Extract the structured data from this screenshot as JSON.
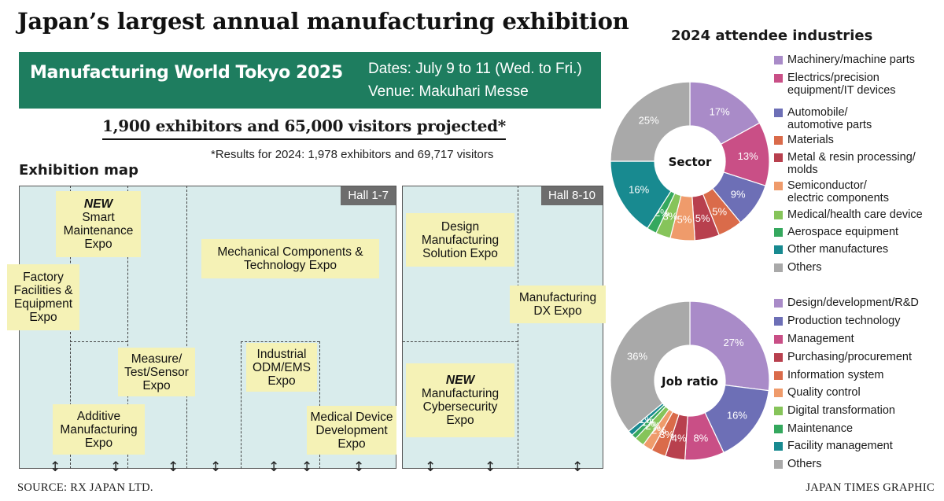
{
  "headline": "Japan’s largest annual manufacturing exhibition",
  "banner": {
    "event": "Manufacturing World Tokyo 2025",
    "dates": "Dates: July 9 to 11 (Wed. to Fri.)",
    "venue": "Venue: Makuhari Messe"
  },
  "projected": "1,900 exhibitors and 65,000 visitors projected*",
  "note": "*Results for 2024: 1,978 exhibitors and 69,717 visitors",
  "map": {
    "title": "Exhibition map",
    "hall_a": "Hall 1-7",
    "hall_b": "Hall 8-10",
    "new_tag": "NEW",
    "expos": {
      "smart_maintenance": [
        "Smart",
        "Maintenance",
        "Expo"
      ],
      "factory_facilities": [
        "Factory",
        "Facilities &",
        "Equipment",
        "Expo"
      ],
      "mechanical_components": [
        "Mechanical Components &",
        "Technology Expo"
      ],
      "measure_test_sensor": [
        "Measure/",
        "Test/Sensor",
        "Expo"
      ],
      "industrial_odm_ems": [
        "Industrial",
        "ODM/EMS",
        "Expo"
      ],
      "additive_manufacturing": [
        "Additive",
        "Manufacturing",
        "Expo"
      ],
      "medical_device": [
        "Medical Device",
        "Development",
        "Expo"
      ],
      "design_manufacturing": [
        "Design",
        "Manufacturing",
        "Solution Expo"
      ],
      "manufacturing_dx": [
        "Manufacturing",
        "DX Expo"
      ],
      "cybersecurity": [
        "Manufacturing",
        "Cybersecurity",
        "Expo"
      ]
    },
    "arrow_glyph": "↕"
  },
  "source": "SOURCE: RX JAPAN LTD.",
  "credit": "JAPAN TIMES GRAPHIC",
  "chart_data": [
    {
      "type": "pie",
      "title": "2024 attendee industries",
      "center_label": "Sector",
      "categories": [
        "Machinery/machine parts",
        "Electrics/precision equipment/IT devices",
        "Automobile/ automotive parts",
        "Materials",
        "Metal & resin processing/ molds",
        "Semiconductor/ electric components",
        "Medical/health care device",
        "Aerospace equipment",
        "Other manufactures",
        "Others"
      ],
      "legend_lines": [
        [
          "Machinery/machine parts"
        ],
        [
          "Electrics/precision",
          "equipment/IT devices"
        ],
        [
          "Automobile/",
          "automotive parts"
        ],
        [
          "Materials"
        ],
        [
          "Metal & resin processing/",
          "molds"
        ],
        [
          "Semiconductor/",
          "electric components"
        ],
        [
          "Medical/health care device"
        ],
        [
          "Aerospace equipment"
        ],
        [
          "Other manufactures"
        ],
        [
          "Others"
        ]
      ],
      "values": [
        17,
        13,
        9,
        5,
        5,
        5,
        3,
        2,
        16,
        25
      ],
      "labels": [
        "17%",
        "13%",
        "9%",
        "5%",
        "5%",
        "5%",
        "3%",
        "2%",
        "16%",
        "25%"
      ],
      "colors": [
        "#a98bc8",
        "#c94f86",
        "#6d6fb6",
        "#da6b4a",
        "#b8404e",
        "#ef9b6b",
        "#86c45a",
        "#35a85e",
        "#188a90",
        "#a9a9a9"
      ]
    },
    {
      "type": "pie",
      "center_label": "Job ratio",
      "categories": [
        "Design/development/R&D",
        "Production technology",
        "Management",
        "Purchasing/procurement",
        "Information system",
        "Quality control",
        "Digital transformation",
        "Maintenance",
        "Facility management",
        "Others"
      ],
      "legend_lines": [
        [
          "Design/development/R&D"
        ],
        [
          "Production technology"
        ],
        [
          "Management"
        ],
        [
          "Purchasing/procurement"
        ],
        [
          "Information system"
        ],
        [
          "Quality control"
        ],
        [
          "Digital transformation"
        ],
        [
          "Maintenance"
        ],
        [
          "Facility management"
        ],
        [
          "Others"
        ]
      ],
      "values": [
        27,
        16,
        8,
        4,
        3,
        2,
        2,
        1,
        1,
        36
      ],
      "labels": [
        "27%",
        "16%",
        "8%",
        "4%",
        "3%",
        "2%",
        "2%",
        "1%",
        "1%",
        "36%"
      ],
      "colors": [
        "#a98bc8",
        "#6d6fb6",
        "#c94f86",
        "#b8404e",
        "#da6b4a",
        "#ef9b6b",
        "#86c45a",
        "#35a85e",
        "#188a90",
        "#a9a9a9"
      ]
    }
  ]
}
